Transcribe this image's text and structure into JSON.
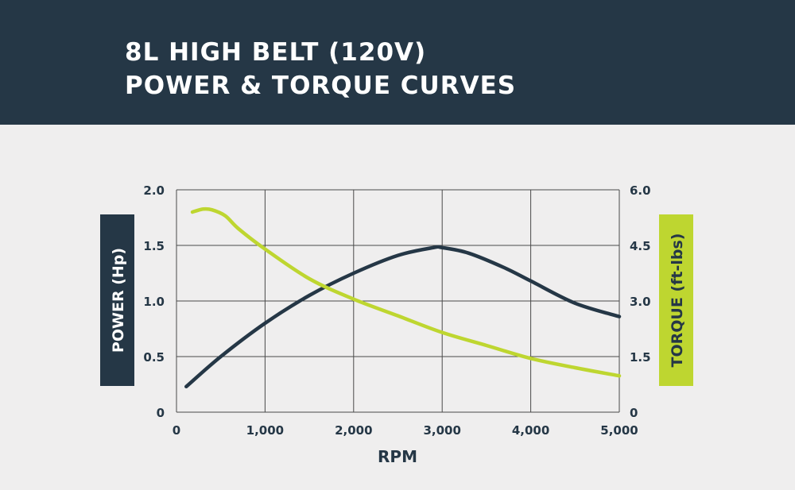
{
  "header": {
    "title_line1": "8L HIGH BELT (120V)",
    "title_line2": "POWER & TORQUE CURVES"
  },
  "colors": {
    "header_bg": "#253746",
    "background": "#efeeee",
    "power_line": "#253746",
    "torque_line": "#bed630",
    "grid": "#4a4a4a"
  },
  "chart_data": {
    "type": "line",
    "xlabel": "RPM",
    "ylabel": "POWER (Hp)",
    "y2label": "TORQUE (ft-lbs)",
    "xlim": [
      0,
      5000
    ],
    "ylim": [
      0,
      2.0
    ],
    "y2lim": [
      0,
      6.0
    ],
    "x_ticks": [
      "0",
      "1,000",
      "2,000",
      "3,000",
      "4,000",
      "5,000"
    ],
    "y_ticks": [
      "0",
      "0.5",
      "1.0",
      "1.5",
      "2.0"
    ],
    "y2_ticks": [
      "0",
      "1.5",
      "3.0",
      "4.5",
      "6.0"
    ],
    "grid": true,
    "series": [
      {
        "axis": "left",
        "color": "#253746",
        "x": [
          110,
          500,
          1000,
          1500,
          2000,
          2500,
          2900,
          3000,
          3300,
          3700,
          4000,
          4500,
          5000
        ],
        "values": [
          0.23,
          0.5,
          0.8,
          1.05,
          1.25,
          1.41,
          1.48,
          1.48,
          1.43,
          1.3,
          1.18,
          0.98,
          0.86
        ]
      },
      {
        "axis": "right",
        "color": "#bed630",
        "x": [
          180,
          300,
          400,
          550,
          700,
          1000,
          1500,
          2000,
          2500,
          3000,
          3500,
          4000,
          4500,
          5000
        ],
        "values": [
          5.4,
          5.48,
          5.46,
          5.3,
          4.95,
          4.4,
          3.6,
          3.05,
          2.6,
          2.15,
          1.8,
          1.45,
          1.2,
          0.98
        ]
      }
    ]
  }
}
